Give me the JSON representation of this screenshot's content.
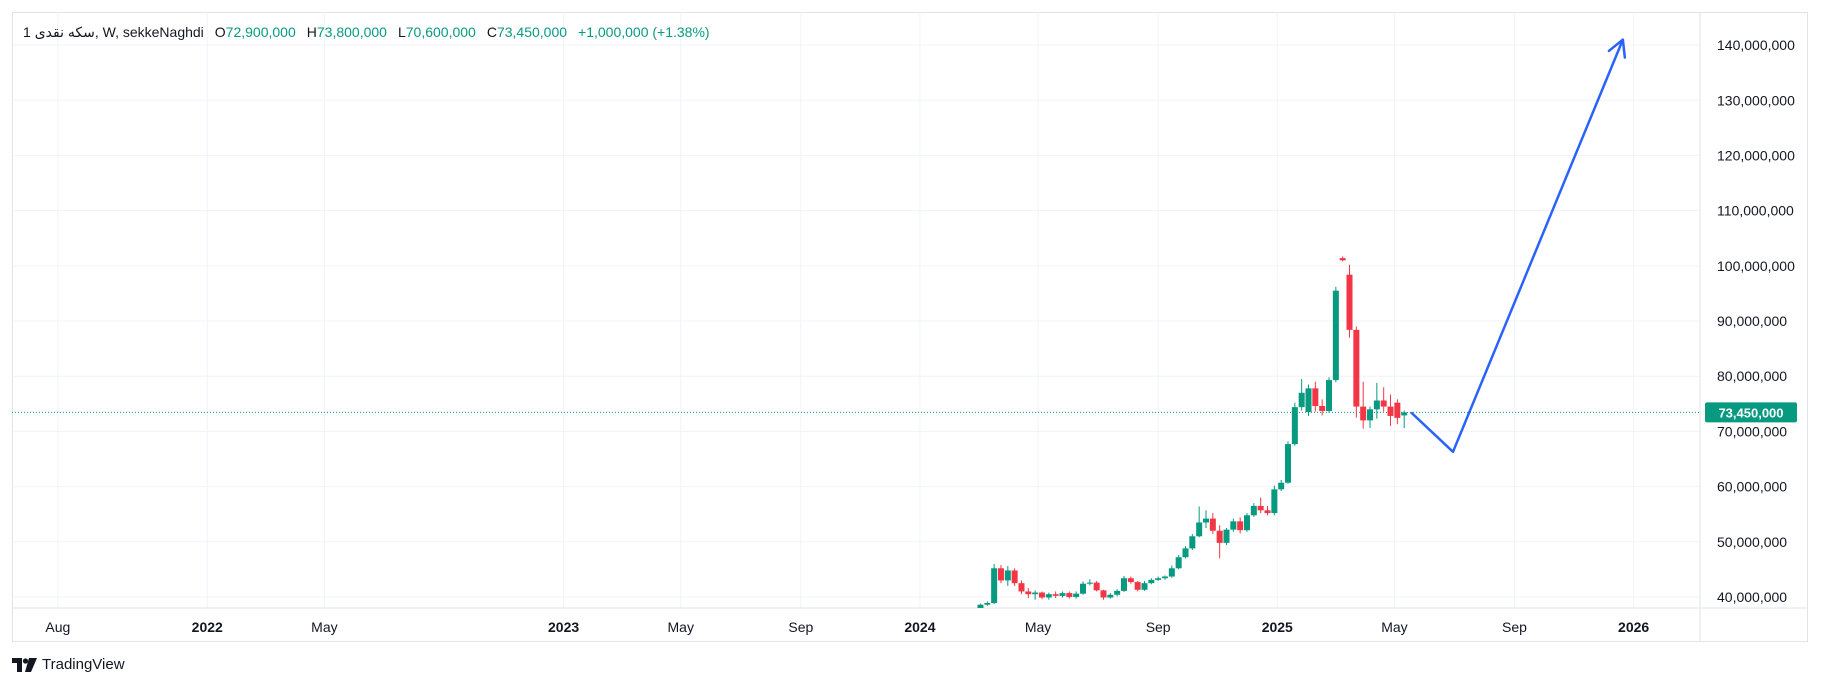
{
  "legend": {
    "symbol": "1 سکه نقدی, W, sekkeNaghdi",
    "o_label": "O",
    "o_value": "72,900,000",
    "h_label": "H",
    "h_value": "73,800,000",
    "l_label": "L",
    "l_value": "70,600,000",
    "c_label": "C",
    "c_value": "73,450,000",
    "change": "+1,000,000 (+1.38%)"
  },
  "brand": {
    "name": "TradingView",
    "icon": "tradingview-logo-icon"
  },
  "colors": {
    "up": "#089981",
    "down": "#f23645",
    "projection": "#2962ff",
    "grid": "#f0f3fa",
    "axis_text": "#131722",
    "price_line": "#089981"
  },
  "chart_data": {
    "type": "candlestick",
    "interval": "W",
    "title": "1 سکه نقدی",
    "ylim": [
      38000000,
      146000000
    ],
    "xlim": [
      "2021-06-15",
      "2026-03-10"
    ],
    "grid": true,
    "y_ticks": [
      "40,000,000",
      "50,000,000",
      "60,000,000",
      "70,000,000",
      "80,000,000",
      "90,000,000",
      "100,000,000",
      "110,000,000",
      "120,000,000",
      "130,000,000",
      "140,000,000"
    ],
    "x_ticks": [
      {
        "label": "Aug",
        "date": "2021-08-01",
        "bold": false
      },
      {
        "label": "2022",
        "date": "2022-01-01",
        "bold": true
      },
      {
        "label": "May",
        "date": "2022-05-01",
        "bold": false
      },
      {
        "label": "2023",
        "date": "2023-01-01",
        "bold": true
      },
      {
        "label": "May",
        "date": "2023-05-01",
        "bold": false
      },
      {
        "label": "Sep",
        "date": "2023-09-01",
        "bold": false
      },
      {
        "label": "2024",
        "date": "2024-01-01",
        "bold": true
      },
      {
        "label": "May",
        "date": "2024-05-01",
        "bold": false
      },
      {
        "label": "Sep",
        "date": "2024-09-01",
        "bold": false
      },
      {
        "label": "2025",
        "date": "2025-01-01",
        "bold": true
      },
      {
        "label": "May",
        "date": "2025-05-01",
        "bold": false
      },
      {
        "label": "Sep",
        "date": "2025-09-01",
        "bold": false
      },
      {
        "label": "2026",
        "date": "2026-01-01",
        "bold": true
      }
    ],
    "last_price": 73450000,
    "last_price_label": "73,450,000",
    "candles": [
      {
        "t": "2024-02-25",
        "o": 36800000,
        "h": 37200000,
        "l": 36600000,
        "c": 37100000
      },
      {
        "t": "2024-03-03",
        "o": 37100000,
        "h": 38800000,
        "l": 37000000,
        "c": 38600000
      },
      {
        "t": "2024-03-10",
        "o": 38600000,
        "h": 39200000,
        "l": 38400000,
        "c": 38900000
      },
      {
        "t": "2024-03-17",
        "o": 38900000,
        "h": 46000000,
        "l": 38700000,
        "c": 45200000
      },
      {
        "t": "2024-03-24",
        "o": 45200000,
        "h": 45800000,
        "l": 42500000,
        "c": 43000000
      },
      {
        "t": "2024-03-31",
        "o": 43000000,
        "h": 45600000,
        "l": 42000000,
        "c": 44800000
      },
      {
        "t": "2024-04-07",
        "o": 44800000,
        "h": 45200000,
        "l": 42000000,
        "c": 42500000
      },
      {
        "t": "2024-04-14",
        "o": 42500000,
        "h": 43000000,
        "l": 40500000,
        "c": 41000000
      },
      {
        "t": "2024-04-21",
        "o": 41000000,
        "h": 41600000,
        "l": 39800000,
        "c": 40500000
      },
      {
        "t": "2024-04-28",
        "o": 40500000,
        "h": 41200000,
        "l": 39500000,
        "c": 40800000
      },
      {
        "t": "2024-05-05",
        "o": 40800000,
        "h": 41000000,
        "l": 39600000,
        "c": 39900000
      },
      {
        "t": "2024-05-12",
        "o": 39900000,
        "h": 40800000,
        "l": 39500000,
        "c": 40500000
      },
      {
        "t": "2024-05-19",
        "o": 40500000,
        "h": 41000000,
        "l": 39800000,
        "c": 40200000
      },
      {
        "t": "2024-05-26",
        "o": 40200000,
        "h": 41000000,
        "l": 39900000,
        "c": 40700000
      },
      {
        "t": "2024-06-02",
        "o": 40700000,
        "h": 41000000,
        "l": 39700000,
        "c": 40000000
      },
      {
        "t": "2024-06-09",
        "o": 40000000,
        "h": 41000000,
        "l": 39700000,
        "c": 40600000
      },
      {
        "t": "2024-06-16",
        "o": 40600000,
        "h": 42800000,
        "l": 40400000,
        "c": 42400000
      },
      {
        "t": "2024-06-23",
        "o": 42400000,
        "h": 43200000,
        "l": 42100000,
        "c": 42600000
      },
      {
        "t": "2024-06-30",
        "o": 42600000,
        "h": 42900000,
        "l": 41000000,
        "c": 41200000
      },
      {
        "t": "2024-07-07",
        "o": 41200000,
        "h": 41300000,
        "l": 39500000,
        "c": 39900000
      },
      {
        "t": "2024-07-14",
        "o": 39900000,
        "h": 40700000,
        "l": 39700000,
        "c": 40400000
      },
      {
        "t": "2024-07-21",
        "o": 40400000,
        "h": 41400000,
        "l": 40100000,
        "c": 41100000
      },
      {
        "t": "2024-07-28",
        "o": 41100000,
        "h": 43800000,
        "l": 40900000,
        "c": 43400000
      },
      {
        "t": "2024-08-04",
        "o": 43400000,
        "h": 43700000,
        "l": 42400000,
        "c": 42700000
      },
      {
        "t": "2024-08-11",
        "o": 42700000,
        "h": 42900000,
        "l": 41000000,
        "c": 41300000
      },
      {
        "t": "2024-08-18",
        "o": 41300000,
        "h": 42900000,
        "l": 41100000,
        "c": 42500000
      },
      {
        "t": "2024-08-25",
        "o": 42500000,
        "h": 43400000,
        "l": 42300000,
        "c": 43100000
      },
      {
        "t": "2024-09-01",
        "o": 43100000,
        "h": 43700000,
        "l": 42900000,
        "c": 43400000
      },
      {
        "t": "2024-09-08",
        "o": 43400000,
        "h": 43900000,
        "l": 43100000,
        "c": 43700000
      },
      {
        "t": "2024-09-15",
        "o": 43700000,
        "h": 45700000,
        "l": 43500000,
        "c": 45200000
      },
      {
        "t": "2024-09-22",
        "o": 45200000,
        "h": 47600000,
        "l": 45000000,
        "c": 47200000
      },
      {
        "t": "2024-09-29",
        "o": 47200000,
        "h": 49200000,
        "l": 47000000,
        "c": 48800000
      },
      {
        "t": "2024-10-06",
        "o": 48800000,
        "h": 51400000,
        "l": 48500000,
        "c": 51000000
      },
      {
        "t": "2024-10-13",
        "o": 51000000,
        "h": 56400000,
        "l": 50800000,
        "c": 53500000
      },
      {
        "t": "2024-10-20",
        "o": 53500000,
        "h": 55700000,
        "l": 52500000,
        "c": 54200000
      },
      {
        "t": "2024-10-27",
        "o": 54200000,
        "h": 55200000,
        "l": 51400000,
        "c": 52000000
      },
      {
        "t": "2024-11-03",
        "o": 52000000,
        "h": 53000000,
        "l": 47000000,
        "c": 49800000
      },
      {
        "t": "2024-11-10",
        "o": 49800000,
        "h": 52500000,
        "l": 49400000,
        "c": 52200000
      },
      {
        "t": "2024-11-17",
        "o": 52200000,
        "h": 54200000,
        "l": 51800000,
        "c": 53700000
      },
      {
        "t": "2024-11-24",
        "o": 53700000,
        "h": 54400000,
        "l": 51500000,
        "c": 52100000
      },
      {
        "t": "2024-12-01",
        "o": 52100000,
        "h": 55200000,
        "l": 51800000,
        "c": 54800000
      },
      {
        "t": "2024-12-08",
        "o": 54800000,
        "h": 57000000,
        "l": 54500000,
        "c": 56500000
      },
      {
        "t": "2024-12-15",
        "o": 56500000,
        "h": 58000000,
        "l": 55200000,
        "c": 55700000
      },
      {
        "t": "2024-12-22",
        "o": 55700000,
        "h": 56500000,
        "l": 54800000,
        "c": 55200000
      },
      {
        "t": "2024-12-29",
        "o": 55200000,
        "h": 60200000,
        "l": 54800000,
        "c": 59500000
      },
      {
        "t": "2025-01-05",
        "o": 59500000,
        "h": 61200000,
        "l": 59200000,
        "c": 60700000
      },
      {
        "t": "2025-01-12",
        "o": 60700000,
        "h": 68200000,
        "l": 60500000,
        "c": 67700000
      },
      {
        "t": "2025-01-19",
        "o": 67700000,
        "h": 75200000,
        "l": 67400000,
        "c": 74400000
      },
      {
        "t": "2025-01-26",
        "o": 74400000,
        "h": 79500000,
        "l": 73800000,
        "c": 77000000
      },
      {
        "t": "2025-02-02",
        "o": 73500000,
        "h": 78500000,
        "l": 72800000,
        "c": 77800000
      },
      {
        "t": "2025-02-09",
        "o": 77800000,
        "h": 79000000,
        "l": 73600000,
        "c": 74600000
      },
      {
        "t": "2025-02-16",
        "o": 74600000,
        "h": 75800000,
        "l": 72900000,
        "c": 73700000
      },
      {
        "t": "2025-02-23",
        "o": 73700000,
        "h": 79800000,
        "l": 73400000,
        "c": 79300000
      },
      {
        "t": "2025-03-02",
        "o": 79300000,
        "h": 96200000,
        "l": 78900000,
        "c": 95500000
      },
      {
        "t": "2025-03-09",
        "o": 101400000,
        "h": 101700000,
        "l": 100800000,
        "c": 101000000
      },
      {
        "t": "2025-03-16",
        "o": 98400000,
        "h": 100200000,
        "l": 87000000,
        "c": 88400000
      },
      {
        "t": "2025-03-23",
        "o": 88400000,
        "h": 89000000,
        "l": 72500000,
        "c": 74500000
      },
      {
        "t": "2025-03-30",
        "o": 74500000,
        "h": 79000000,
        "l": 70500000,
        "c": 72000000
      },
      {
        "t": "2025-04-06",
        "o": 72000000,
        "h": 74500000,
        "l": 70600000,
        "c": 74000000
      },
      {
        "t": "2025-04-13",
        "o": 74000000,
        "h": 78800000,
        "l": 72300000,
        "c": 75600000
      },
      {
        "t": "2025-04-20",
        "o": 75600000,
        "h": 78000000,
        "l": 73600000,
        "c": 74500000
      },
      {
        "t": "2025-04-27",
        "o": 74500000,
        "h": 76700000,
        "l": 71000000,
        "c": 72800000
      },
      {
        "t": "2025-05-04",
        "o": 75200000,
        "h": 75800000,
        "l": 71300000,
        "c": 72450000
      },
      {
        "t": "2025-05-11",
        "o": 72900000,
        "h": 73800000,
        "l": 70600000,
        "c": 73450000
      }
    ],
    "projection": {
      "points": [
        {
          "t": "2025-05-18",
          "v": 73450000
        },
        {
          "t": "2025-06-30",
          "v": 66300000
        },
        {
          "t": "2025-12-21",
          "v": 141000000
        }
      ],
      "arrow": true
    }
  }
}
